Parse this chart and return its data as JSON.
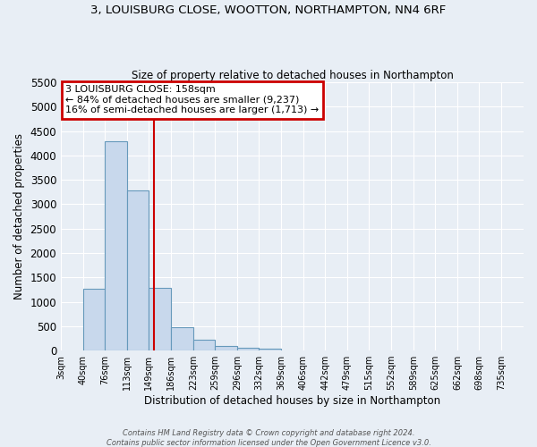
{
  "title": "3, LOUISBURG CLOSE, WOOTTON, NORTHAMPTON, NN4 6RF",
  "subtitle": "Size of property relative to detached houses in Northampton",
  "xlabel": "Distribution of detached houses by size in Northampton",
  "ylabel": "Number of detached properties",
  "bar_color": "#c8d8ec",
  "bar_edge_color": "#6699bb",
  "bg_color": "#e8eef5",
  "grid_color": "white",
  "bin_labels": [
    "3sqm",
    "40sqm",
    "76sqm",
    "113sqm",
    "149sqm",
    "186sqm",
    "223sqm",
    "259sqm",
    "296sqm",
    "332sqm",
    "369sqm",
    "406sqm",
    "442sqm",
    "479sqm",
    "515sqm",
    "552sqm",
    "589sqm",
    "625sqm",
    "662sqm",
    "698sqm",
    "735sqm"
  ],
  "bar_values": [
    0,
    1270,
    4300,
    3290,
    1290,
    480,
    220,
    90,
    50,
    30,
    0,
    0,
    0,
    0,
    0,
    0,
    0,
    0,
    0,
    0
  ],
  "bin_edges": [
    3,
    40,
    76,
    113,
    149,
    186,
    223,
    259,
    296,
    332,
    369,
    406,
    442,
    479,
    515,
    552,
    589,
    625,
    662,
    698,
    735
  ],
  "property_size": 158,
  "vline_color": "#cc0000",
  "annotation_text_line1": "3 LOUISBURG CLOSE: 158sqm",
  "annotation_text_line2": "← 84% of detached houses are smaller (9,237)",
  "annotation_text_line3": "16% of semi-detached houses are larger (1,713) →",
  "annotation_box_edgecolor": "#cc0000",
  "ylim": [
    0,
    5500
  ],
  "yticks": [
    0,
    500,
    1000,
    1500,
    2000,
    2500,
    3000,
    3500,
    4000,
    4500,
    5000,
    5500
  ],
  "footer_line1": "Contains HM Land Registry data © Crown copyright and database right 2024.",
  "footer_line2": "Contains public sector information licensed under the Open Government Licence v3.0."
}
